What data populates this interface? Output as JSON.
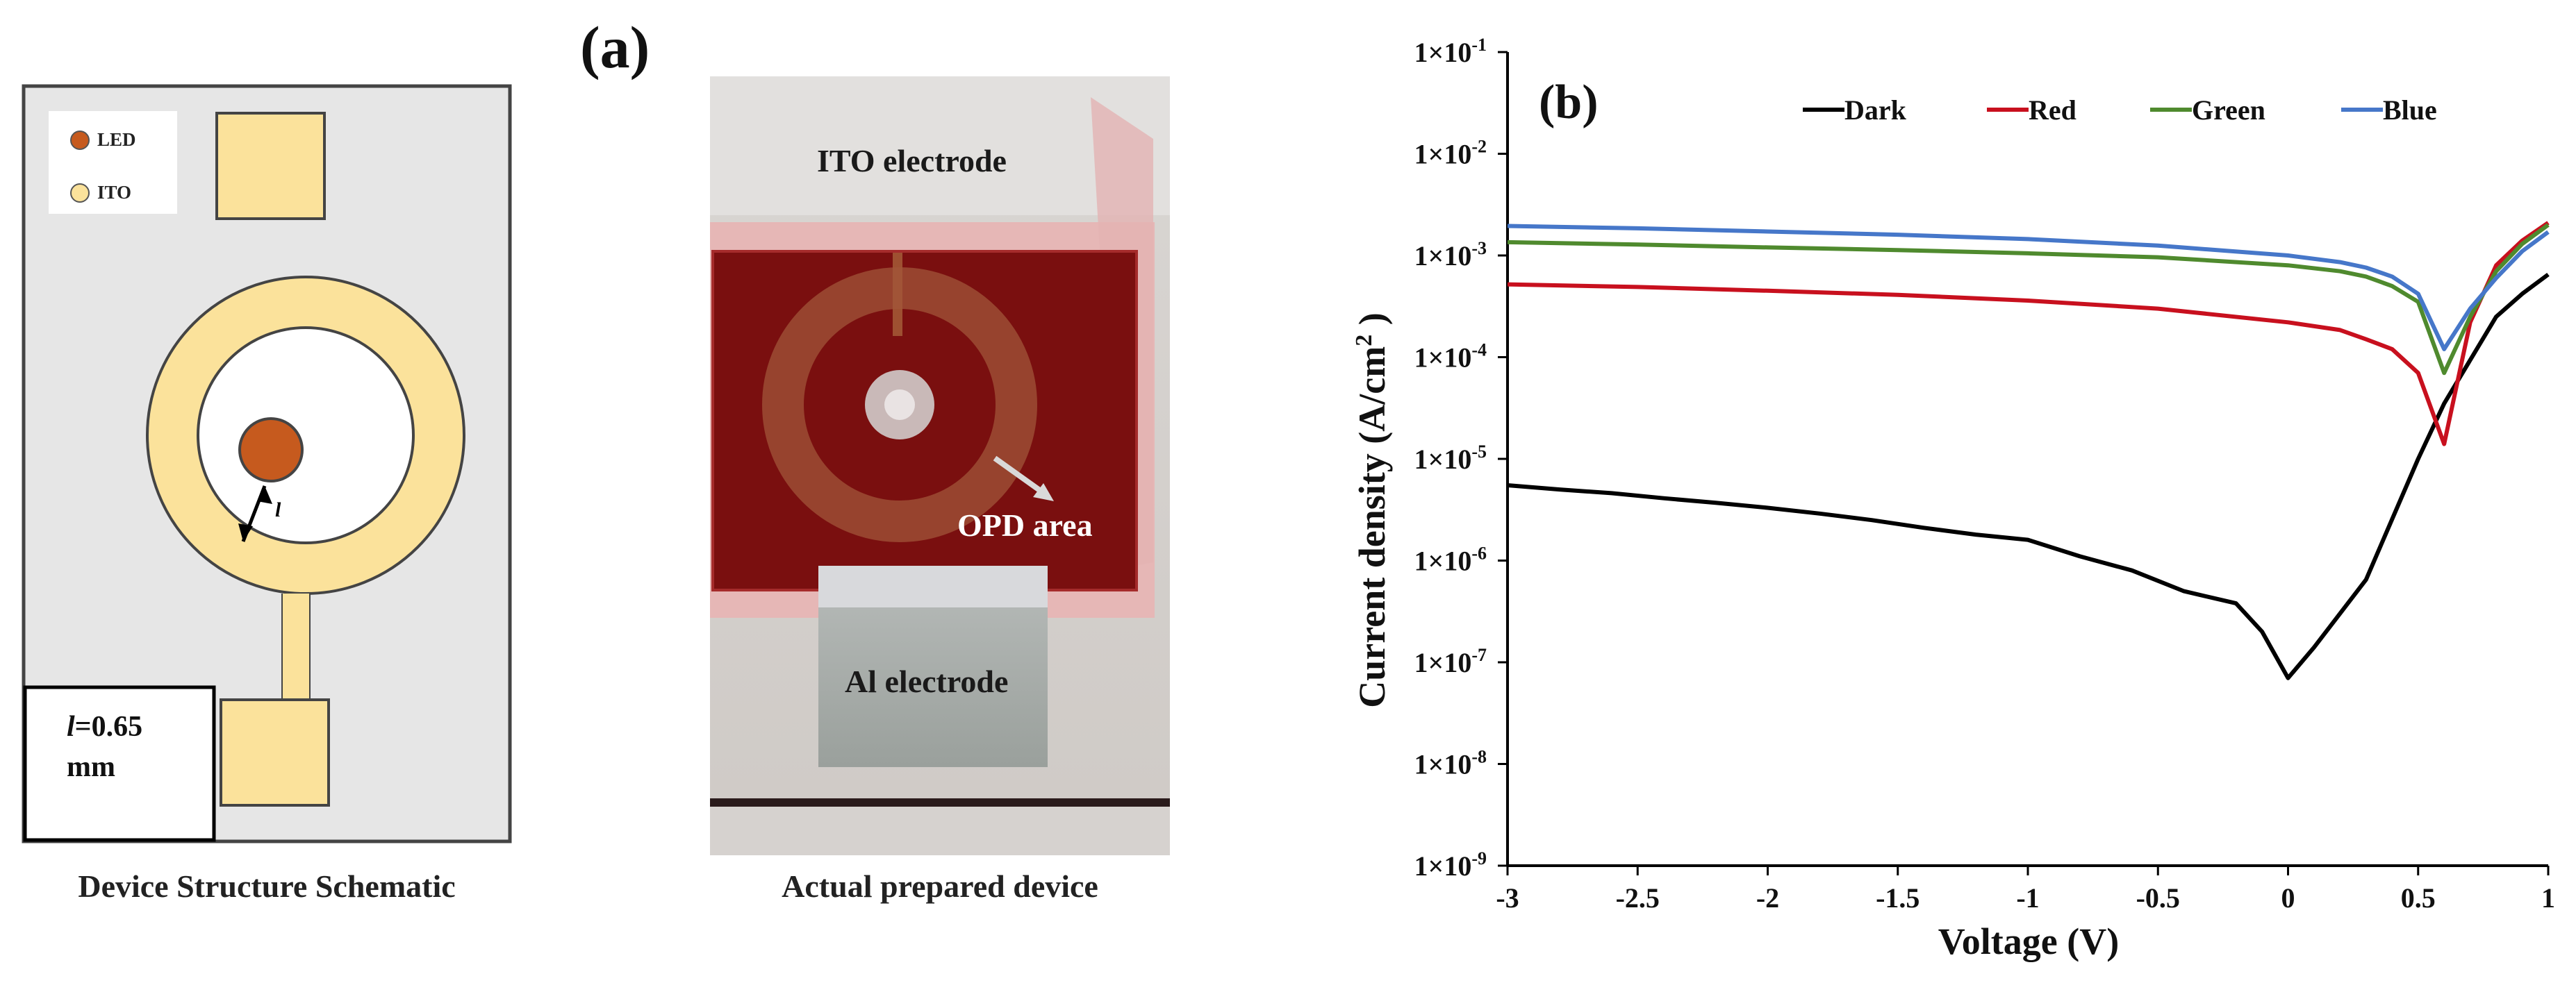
{
  "panel_a": {
    "label": "(a)",
    "schematic": {
      "caption": "Device Structure Schematic",
      "legend": [
        {
          "label": "LED",
          "color": "#c65a1e"
        },
        {
          "label": "ITO",
          "color": "#fbe29b"
        }
      ],
      "dimension_symbol": "l",
      "dimension_value": "=0.65",
      "dimension_unit": "mm"
    },
    "photo": {
      "caption": "Actual prepared device",
      "label_ito": "ITO electrode",
      "label_opd": "OPD area",
      "label_al": "Al electrode"
    }
  },
  "panel_b": {
    "label": "(b)"
  },
  "colors": {
    "dark": "#000000",
    "red": "#c8101e",
    "green": "#4f8a2e",
    "blue": "#4677c9",
    "led": "#c65a1e",
    "ito": "#fbe29b"
  },
  "chart_data": {
    "type": "line",
    "title": "",
    "xlabel": "Voltage (V)",
    "ylabel": "Current density  (A/cm",
    "ylabel_sup": "2",
    "ylabel_close": " )",
    "yscale": "log",
    "xlim": [
      -3,
      1
    ],
    "ylim": [
      1e-09,
      0.1
    ],
    "xticks": [
      -3,
      -2.5,
      -2,
      -1.5,
      -1,
      -0.5,
      0,
      0.5,
      1
    ],
    "xtick_labels": [
      "-3",
      "-2.5",
      "-2",
      "-1.5",
      "-1",
      "-0.5",
      "0",
      "0.5",
      "1"
    ],
    "yticks": [
      -9,
      -8,
      -7,
      -6,
      -5,
      -4,
      -3,
      -2,
      -1
    ],
    "ytick_base": "1×10",
    "ytick_exps": [
      "-9",
      "-8",
      "-7",
      "-6",
      "-5",
      "-4",
      "-3",
      "-2",
      "-1"
    ],
    "legend_position": "top",
    "series": [
      {
        "name": "Dark",
        "color_key": "dark",
        "x": [
          -3,
          -2.8,
          -2.6,
          -2.4,
          -2.2,
          -2.0,
          -1.8,
          -1.6,
          -1.4,
          -1.2,
          -1.0,
          -0.8,
          -0.6,
          -0.4,
          -0.2,
          -0.1,
          0,
          0.1,
          0.3,
          0.5,
          0.6,
          0.8,
          0.9,
          1.0
        ],
        "y": [
          5.5e-06,
          5e-06,
          4.6e-06,
          4.1e-06,
          3.7e-06,
          3.3e-06,
          2.9e-06,
          2.5e-06,
          2.1e-06,
          1.8e-06,
          1.6e-06,
          1.1e-06,
          8e-07,
          5e-07,
          3.8e-07,
          2e-07,
          7e-08,
          1.4e-07,
          6.5e-07,
          1e-05,
          3.5e-05,
          0.00025,
          0.00042,
          0.00065
        ]
      },
      {
        "name": "Red",
        "color_key": "red",
        "x": [
          -3,
          -2.5,
          -2.0,
          -1.5,
          -1.0,
          -0.5,
          0,
          0.2,
          0.3,
          0.4,
          0.5,
          0.6,
          0.7,
          0.8,
          0.9,
          1.0
        ],
        "y": [
          0.00052,
          0.00049,
          0.00045,
          0.00041,
          0.00036,
          0.0003,
          0.00022,
          0.000185,
          0.00015,
          0.00012,
          7e-05,
          1.4e-05,
          0.00022,
          0.0008,
          0.0014,
          0.0021
        ]
      },
      {
        "name": "Green",
        "color_key": "green",
        "x": [
          -3,
          -2.5,
          -2.0,
          -1.5,
          -1.0,
          -0.5,
          0,
          0.2,
          0.3,
          0.4,
          0.5,
          0.6,
          0.7,
          0.8,
          0.9,
          1.0
        ],
        "y": [
          0.00135,
          0.00128,
          0.0012,
          0.00113,
          0.00105,
          0.00096,
          0.0008,
          0.0007,
          0.00062,
          0.0005,
          0.00035,
          7e-05,
          0.00025,
          0.0007,
          0.0013,
          0.002
        ]
      },
      {
        "name": "Blue",
        "color_key": "blue",
        "x": [
          -3,
          -2.5,
          -2.0,
          -1.5,
          -1.0,
          -0.5,
          0,
          0.2,
          0.3,
          0.4,
          0.5,
          0.6,
          0.7,
          0.8,
          0.9,
          1.0
        ],
        "y": [
          0.00195,
          0.00185,
          0.00172,
          0.0016,
          0.00145,
          0.00125,
          0.001,
          0.00086,
          0.00076,
          0.00062,
          0.00042,
          0.00012,
          0.0003,
          0.0006,
          0.0011,
          0.0017
        ]
      }
    ]
  }
}
